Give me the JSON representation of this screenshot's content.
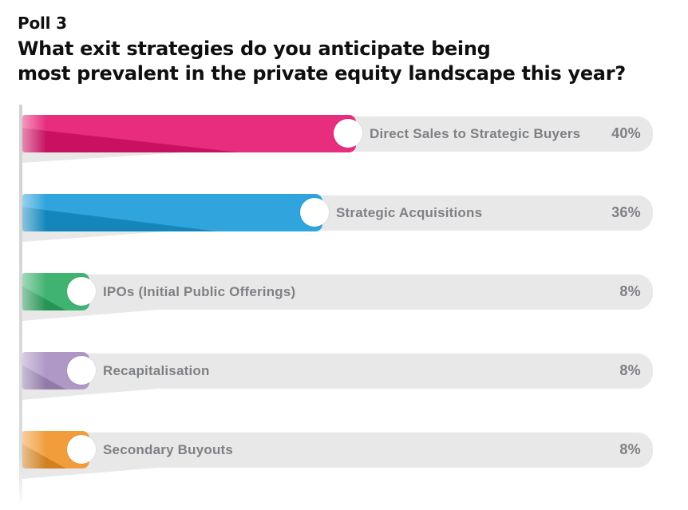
{
  "header": {
    "poll_label": "Poll 3",
    "question_line1": "What exit strategies do you anticipate being",
    "question_line2": "most prevalent in the private equity landscape this year?"
  },
  "chart_data": {
    "type": "bar",
    "orientation": "horizontal",
    "title": "Poll 3",
    "question": "What exit strategies do you anticipate being most prevalent in the private equity landscape this year?",
    "categories": [
      "Direct Sales to Strategic Buyers",
      "Strategic Acquisitions",
      "IPOs (Initial Public Offerings)",
      "Recapitalisation",
      "Secondary Buyouts"
    ],
    "values": [
      40,
      36,
      8,
      8,
      8
    ],
    "value_labels": [
      "40%",
      "36%",
      "8%",
      "8%",
      "8%"
    ],
    "unit": "percent",
    "bar_colors": [
      "#E6156F",
      "#189AD8",
      "#2BAA61",
      "#A78CC0",
      "#EF9226"
    ],
    "track_color": "#E8E8E9",
    "label_color": "#7E8083",
    "legend": "none",
    "value_axis_visible": false,
    "grid": "off"
  }
}
